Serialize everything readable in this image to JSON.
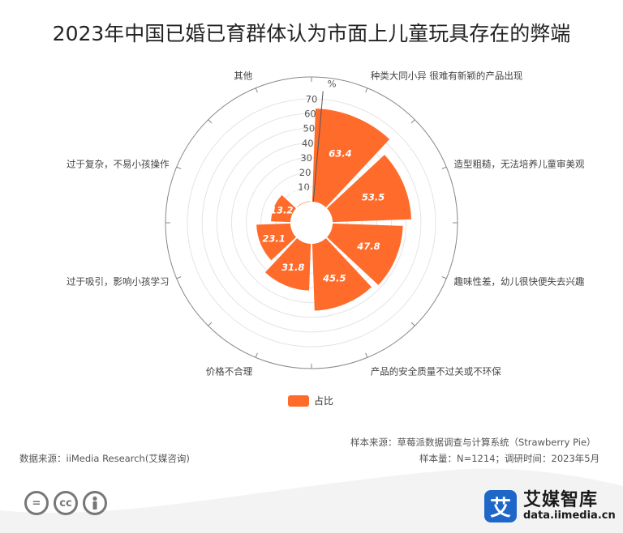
{
  "title": "2023年中国已婚已育群体认为市面上儿童玩具存在的弊端",
  "chart_data": {
    "type": "polar-bar",
    "unit": "%",
    "radial_ticks": [
      0,
      10,
      20,
      30,
      40,
      50,
      60,
      70
    ],
    "rmax": 70,
    "categories": [
      "种类大同小异 很难有新颖的产品出现",
      "造型粗糙，无法培养儿童审美观",
      "趣味性差，幼儿很快便失去兴趣",
      "产品的安全质量不过关或不环保",
      "价格不合理",
      "过于吸引，影响小孩学习",
      "过于复杂，不易小孩操作",
      "其他"
    ],
    "series": [
      {
        "name": "占比",
        "values": [
          63.4,
          53.5,
          47.8,
          45.5,
          31.8,
          23.1,
          13.2,
          0.3
        ]
      }
    ],
    "legend": {
      "position": "bottom",
      "entries": [
        "占比"
      ]
    },
    "colors": {
      "bar": "#ff6b2b",
      "grid": "#e4e4e4",
      "outer": "#888888"
    }
  },
  "footer": {
    "data_source": "数据来源：iiMedia Research(艾媒咨询)",
    "sample_source": "样本来源：草莓派数据调查与计算系统（Strawberry Pie）",
    "sample_info": "样本量：N=1214；调研时间：2023年5月"
  },
  "brand": {
    "logo_char": "艾",
    "name": "艾媒智库",
    "url": "data.iimedia.cn"
  },
  "license_badges": [
    "=",
    "cc",
    "person"
  ]
}
